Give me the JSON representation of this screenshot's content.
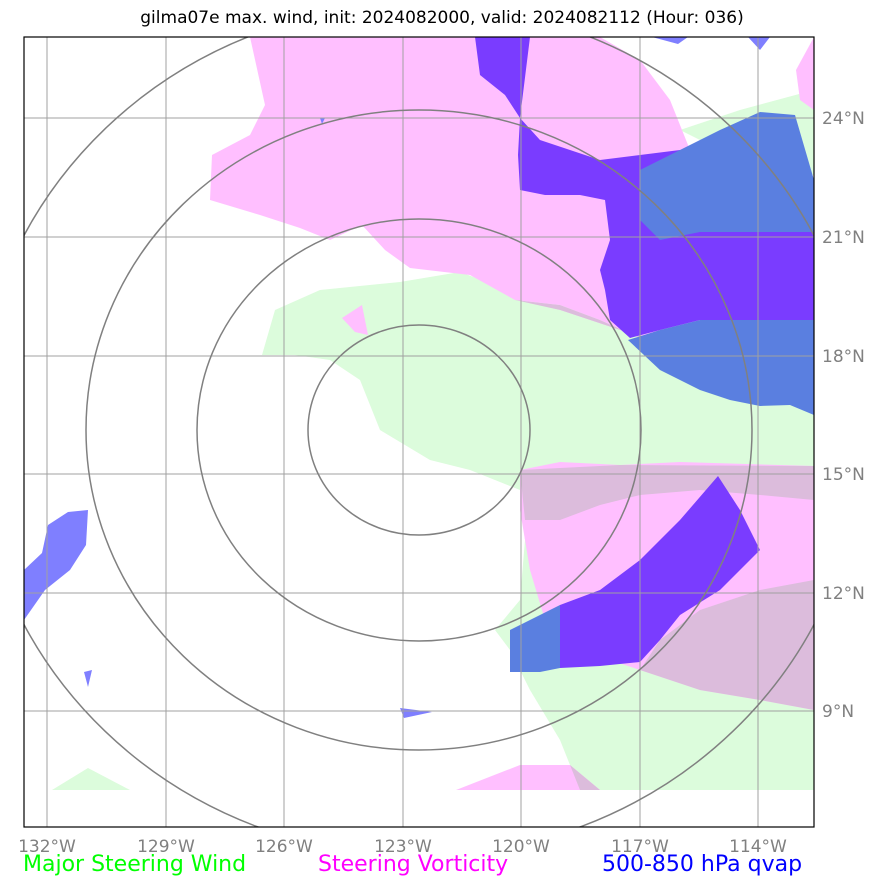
{
  "title": "gilma07e max. wind, init: 2024082000, valid: 2024082112 (Hour: 036)",
  "longitude_labels": [
    "132°W",
    "129°W",
    "126°W",
    "123°W",
    "120°W",
    "117°W",
    "114°W"
  ],
  "latitude_labels": [
    "24°N",
    "21°N",
    "18°N",
    "15°N",
    "12°N",
    "9°N"
  ],
  "legend": {
    "wind": "Major Steering Wind",
    "vorticity": "Steering Vorticity",
    "qvap": "500-850 hPa qvap"
  },
  "colors": {
    "wind": "#00ff00",
    "vorticity": "#ff00ff",
    "qvap": "#0000ff",
    "wind_fill": "#dcfcdc",
    "vorticity_fill": "#ffbfff",
    "qvap_fill": "#7f7fff",
    "range_rings": "#808080",
    "grid": "#a0a0a0"
  }
}
